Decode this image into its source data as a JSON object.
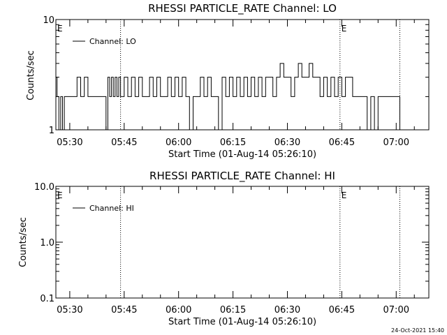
{
  "footer": {
    "timestamp": "24-Oct-2021 15:40"
  },
  "chart_data": [
    {
      "type": "line",
      "title": "RHESSI PARTICLE_RATE Channel: LO",
      "xlabel": "Start Time (01-Aug-14 05:26:10)",
      "ylabel": "Counts/sec",
      "yscale": "log",
      "ylim": [
        1,
        10
      ],
      "ytick_labels": [
        "1",
        "10"
      ],
      "xlim": [
        "05:26:10",
        "07:09:00"
      ],
      "xtick_labels": [
        "05:30",
        "05:45",
        "06:00",
        "06:15",
        "06:30",
        "06:45",
        "07:00"
      ],
      "legend": {
        "position": "top-left",
        "entries": [
          "Channel: LO"
        ]
      },
      "vlines": [
        "05:44:00",
        "06:44:30",
        "07:01:00"
      ],
      "markers": [
        {
          "label": "E",
          "x": "05:26:10"
        },
        {
          "label": "E",
          "x": "06:44:30"
        }
      ],
      "series": [
        {
          "name": "Channel: LO",
          "x": [
            "05:26:10",
            "05:26:30",
            "05:27:00",
            "05:27:30",
            "05:28:00",
            "05:28:30",
            "05:29:00",
            "05:30:00",
            "05:31:00",
            "05:32:00",
            "05:33:00",
            "05:34:00",
            "05:35:00",
            "05:36:00",
            "05:37:00",
            "05:38:00",
            "05:39:00",
            "05:40:00",
            "05:40:30",
            "05:41:00",
            "05:41:30",
            "05:42:00",
            "05:42:30",
            "05:43:00",
            "05:43:30",
            "05:44:00",
            "05:44:30",
            "05:45:00",
            "05:46:00",
            "05:47:00",
            "05:48:00",
            "05:49:00",
            "05:50:00",
            "05:51:00",
            "05:52:00",
            "05:53:00",
            "05:54:00",
            "05:55:00",
            "05:56:00",
            "05:57:00",
            "05:58:00",
            "05:59:00",
            "06:00:00",
            "06:01:00",
            "06:02:00",
            "06:03:00",
            "06:04:00",
            "06:05:00",
            "06:06:00",
            "06:07:00",
            "06:08:00",
            "06:09:00",
            "06:10:00",
            "06:11:00",
            "06:12:00",
            "06:13:00",
            "06:14:00",
            "06:15:00",
            "06:16:00",
            "06:17:00",
            "06:18:00",
            "06:19:00",
            "06:20:00",
            "06:21:00",
            "06:22:00",
            "06:23:00",
            "06:24:00",
            "06:25:00",
            "06:26:00",
            "06:27:00",
            "06:28:00",
            "06:29:00",
            "06:30:00",
            "06:31:00",
            "06:32:00",
            "06:33:00",
            "06:34:00",
            "06:35:00",
            "06:36:00",
            "06:37:00",
            "06:38:00",
            "06:39:00",
            "06:40:00",
            "06:41:00",
            "06:42:00",
            "06:43:00",
            "06:44:00",
            "06:45:00",
            "06:46:00",
            "06:47:00",
            "06:48:00",
            "06:49:00",
            "06:50:00",
            "06:51:00",
            "06:52:00",
            "06:53:00",
            "06:54:00",
            "06:55:00",
            "06:56:00",
            "06:57:00",
            "06:58:00",
            "06:59:00",
            "07:00:00",
            "07:01:00",
            "07:02:00"
          ],
          "values": [
            3,
            2,
            1,
            2,
            1,
            2,
            2,
            2,
            2,
            3,
            2,
            3,
            2,
            2,
            2,
            2,
            2,
            1,
            3,
            2,
            3,
            2,
            3,
            2,
            3,
            2,
            2,
            3,
            2,
            3,
            2,
            3,
            2,
            2,
            3,
            2,
            3,
            2,
            2,
            3,
            2,
            3,
            2,
            3,
            2,
            1,
            2,
            2,
            3,
            2,
            3,
            2,
            2,
            1,
            3,
            2,
            3,
            2,
            3,
            2,
            3,
            2,
            3,
            2,
            3,
            2,
            3,
            3,
            2,
            3,
            4,
            3,
            3,
            2,
            3,
            4,
            3,
            3,
            4,
            3,
            3,
            2,
            3,
            2,
            3,
            2,
            3,
            2,
            3,
            3,
            2,
            2,
            2,
            2,
            1,
            2,
            1,
            2,
            2,
            2,
            2,
            2,
            2,
            1,
            1
          ]
        }
      ]
    },
    {
      "type": "line",
      "title": "RHESSI PARTICLE_RATE Channel: HI",
      "xlabel": "Start Time (01-Aug-14 05:26:10)",
      "ylabel": "Counts/sec",
      "yscale": "log",
      "ylim": [
        0.1,
        10.0
      ],
      "ytick_labels": [
        "0.1",
        "1.0",
        "10.0"
      ],
      "xlim": [
        "05:26:10",
        "07:09:00"
      ],
      "xtick_labels": [
        "05:30",
        "05:45",
        "06:00",
        "06:15",
        "06:30",
        "06:45",
        "07:00"
      ],
      "legend": {
        "position": "top-left",
        "entries": [
          "Channel: HI"
        ]
      },
      "vlines": [
        "05:44:00",
        "06:44:30",
        "07:01:00"
      ],
      "markers": [
        {
          "label": "E",
          "x": "05:26:10"
        },
        {
          "label": "E",
          "x": "06:44:30"
        }
      ],
      "series": [
        {
          "name": "Channel: HI",
          "x": [],
          "values": []
        }
      ]
    }
  ]
}
